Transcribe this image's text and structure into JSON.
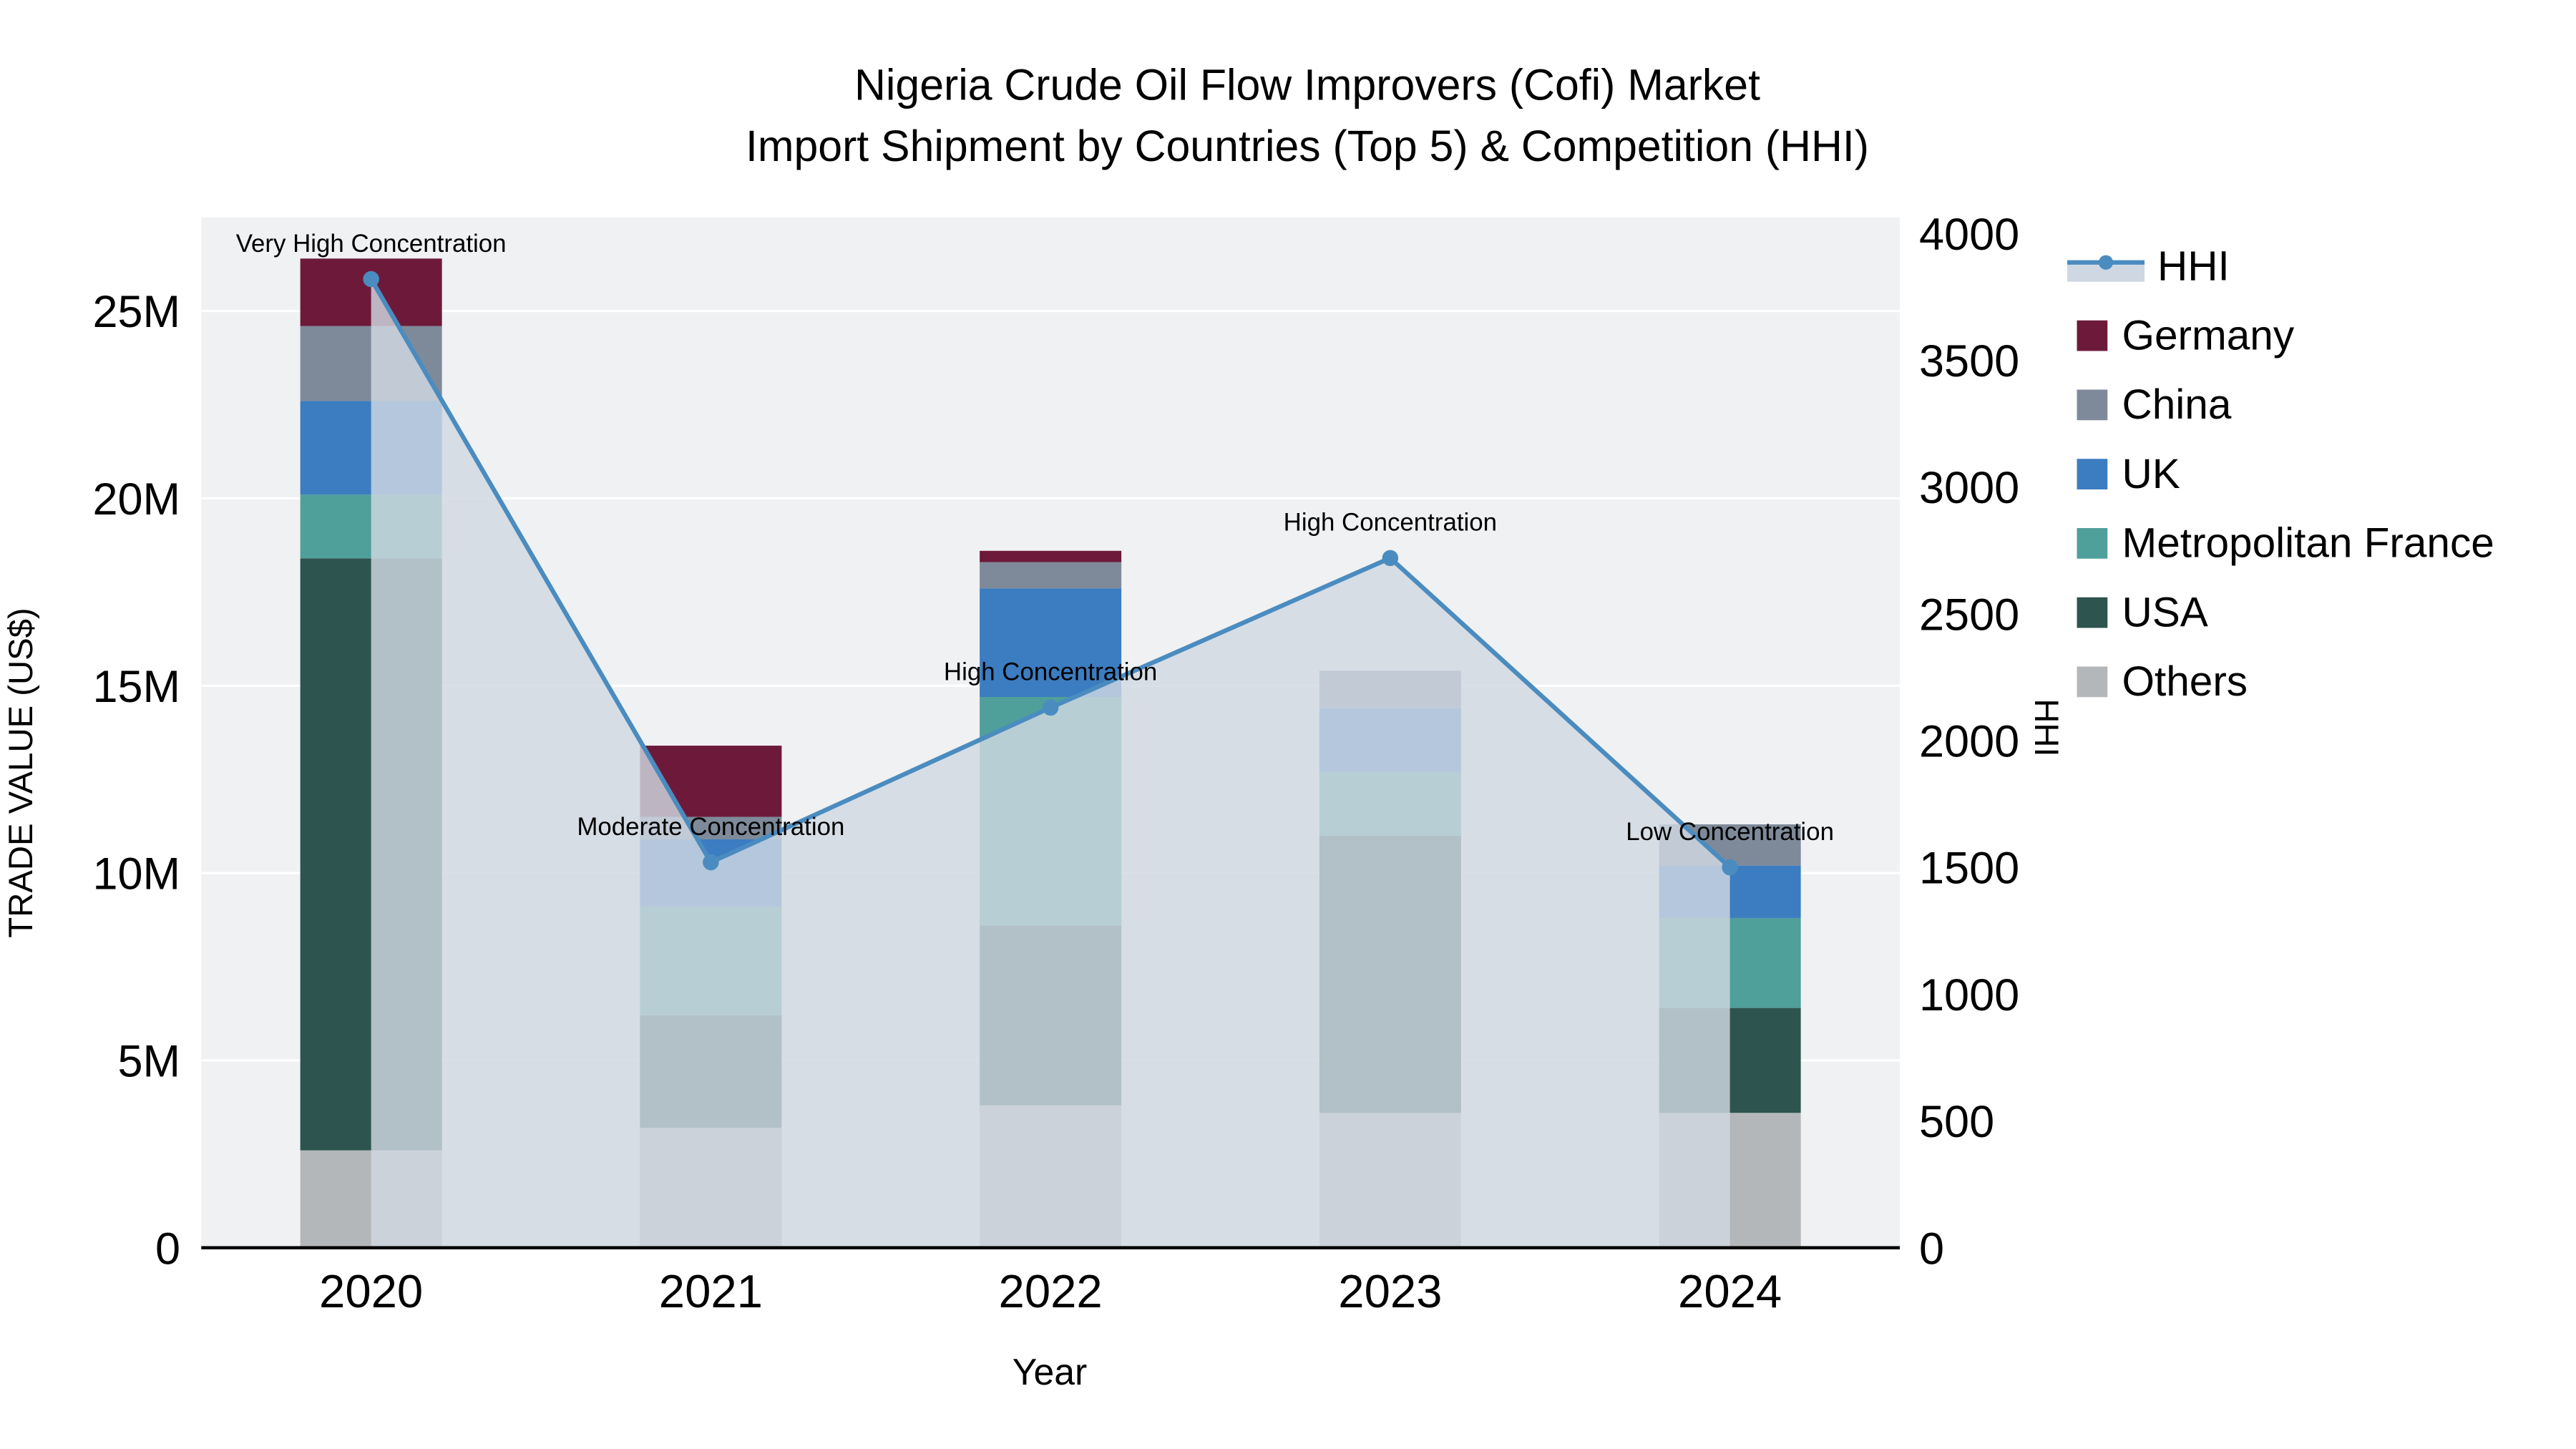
{
  "page": {
    "background": "#ffffff",
    "plot_background": "#f0f1f2"
  },
  "chart_data": {
    "type": "bar",
    "subtype": "stacked-bars-with-area-line-overlay",
    "title_line1": "Nigeria Crude Oil Flow Improvers (Cofi) Market",
    "title_line2": "Import Shipment by Countries (Top 5) & Competition (HHI)",
    "xlabel": "Year",
    "ylabel_left": "TRADE VALUE (US$)",
    "ylabel_right": "HHI",
    "categories": [
      "2020",
      "2021",
      "2022",
      "2023",
      "2024"
    ],
    "bar_unit": "M US$",
    "series": [
      {
        "name": "Others",
        "color": "#b4b7b9",
        "values": [
          2.6,
          3.2,
          3.8,
          3.6,
          3.6
        ]
      },
      {
        "name": "USA",
        "color": "#2d544e",
        "values": [
          15.8,
          3.0,
          4.8,
          7.4,
          2.8
        ]
      },
      {
        "name": "Metropolitan France",
        "color": "#4f9f9b",
        "values": [
          1.7,
          2.9,
          6.1,
          1.7,
          2.4
        ]
      },
      {
        "name": "UK",
        "color": "#3c7cc0",
        "values": [
          2.5,
          1.8,
          2.9,
          1.7,
          1.4
        ]
      },
      {
        "name": "China",
        "color": "#7e8a99",
        "values": [
          2.0,
          0.6,
          0.7,
          1.0,
          1.1
        ]
      },
      {
        "name": "Germany",
        "color": "#6d1a3a",
        "values": [
          1.8,
          1.9,
          0.3,
          0,
          0
        ]
      }
    ],
    "hhi_series": {
      "name": "HHI",
      "values": [
        3820,
        1520,
        2130,
        2720,
        1500
      ],
      "line_color": "#4a8cc0",
      "fill_color": "#cfd8e2",
      "fill_opacity": 0.82
    },
    "annotations": [
      {
        "category": "2020",
        "text": "Very High Concentration"
      },
      {
        "category": "2021",
        "text": "Moderate Concentration"
      },
      {
        "category": "2022",
        "text": "High Concentration"
      },
      {
        "category": "2023",
        "text": "High Concentration"
      },
      {
        "category": "2024",
        "text": "Low Concentration"
      }
    ],
    "y_left_ticks": [
      {
        "label": "0",
        "value": 0
      },
      {
        "label": "5M",
        "value": 5
      },
      {
        "label": "10M",
        "value": 10
      },
      {
        "label": "15M",
        "value": 15
      },
      {
        "label": "20M",
        "value": 20
      },
      {
        "label": "25M",
        "value": 25
      }
    ],
    "y_right_ticks": [
      0,
      500,
      1000,
      1500,
      2000,
      2500,
      3000,
      3500,
      4000
    ],
    "y_left_range": [
      0,
      27.5
    ],
    "y_right_range": [
      0,
      4000
    ],
    "legend_order": [
      "HHI",
      "Germany",
      "China",
      "UK",
      "Metropolitan France",
      "USA",
      "Others"
    ],
    "legend_position": "right",
    "grid": "horizontal-white-lines"
  }
}
